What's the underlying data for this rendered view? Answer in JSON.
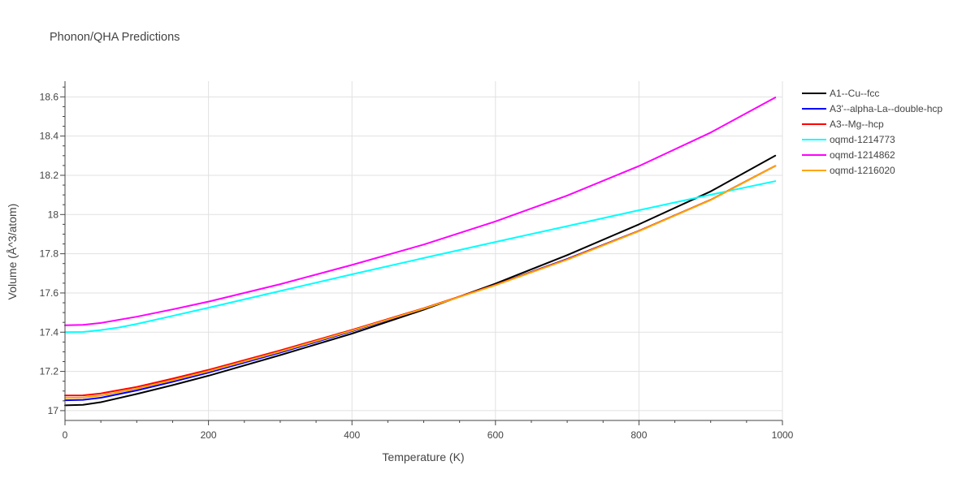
{
  "chart_data": {
    "type": "line",
    "title": "Phonon/QHA Predictions",
    "xlabel": "Temperature (K)",
    "ylabel": "Volume (Å^3/atom)",
    "xlim": [
      0,
      1000
    ],
    "ylim": [
      16.95,
      18.68
    ],
    "x_ticks": [
      0,
      200,
      400,
      600,
      800,
      1000
    ],
    "y_ticks": [
      17,
      17.2,
      17.4,
      17.6,
      17.8,
      18,
      18.2,
      18.4,
      18.6
    ],
    "x_tick_labels": [
      "0",
      "200",
      "400",
      "600",
      "800",
      "1000"
    ],
    "y_tick_labels": [
      "17",
      "17.2",
      "17.4",
      "17.6",
      "17.8",
      "18",
      "18.2",
      "18.4",
      "18.6"
    ],
    "grid": true,
    "legend_position": "top-right (outside plot)",
    "series": [
      {
        "name": "A1--Cu--fcc",
        "color": "#000000",
        "x": [
          0,
          25,
          50,
          100,
          150,
          200,
          300,
          400,
          500,
          600,
          700,
          800,
          900,
          990
        ],
        "y": [
          17.027,
          17.03,
          17.043,
          17.085,
          17.13,
          17.178,
          17.283,
          17.393,
          17.515,
          17.648,
          17.793,
          17.95,
          18.118,
          18.3
        ]
      },
      {
        "name": "A3'--alpha-La--double-hcp",
        "color": "#0000ff",
        "x": [
          0,
          25,
          50,
          100,
          150,
          200,
          300,
          400,
          500,
          600,
          700,
          800,
          900,
          990
        ],
        "y": [
          17.053,
          17.055,
          17.066,
          17.103,
          17.147,
          17.194,
          17.296,
          17.405,
          17.52,
          17.642,
          17.773,
          17.917,
          18.075,
          18.248
        ]
      },
      {
        "name": "A3--Mg--hcp",
        "color": "#ff0000",
        "x": [
          0,
          25,
          50,
          100,
          150,
          200,
          300,
          400,
          500,
          600,
          700,
          800,
          900,
          990
        ],
        "y": [
          17.077,
          17.078,
          17.088,
          17.121,
          17.163,
          17.208,
          17.307,
          17.412,
          17.522,
          17.641,
          17.771,
          17.916,
          18.075,
          18.248
        ]
      },
      {
        "name": "oqmd-1214773",
        "color": "#00ffff",
        "x": [
          0,
          25,
          50,
          75,
          100,
          150,
          200,
          300,
          400,
          500,
          600,
          700,
          800,
          900,
          990
        ],
        "y": [
          17.4,
          17.401,
          17.411,
          17.424,
          17.442,
          17.483,
          17.525,
          17.61,
          17.695,
          17.778,
          17.86,
          17.941,
          18.022,
          18.101,
          18.17
        ]
      },
      {
        "name": "oqmd-1214862",
        "color": "#ff00ff",
        "x": [
          0,
          25,
          50,
          100,
          150,
          200,
          300,
          400,
          500,
          600,
          700,
          800,
          900,
          990
        ],
        "y": [
          17.435,
          17.437,
          17.447,
          17.479,
          17.516,
          17.556,
          17.645,
          17.743,
          17.847,
          17.965,
          18.097,
          18.247,
          18.418,
          18.597
        ]
      },
      {
        "name": "oqmd-1216020",
        "color": "#ffa500",
        "x": [
          0,
          25,
          50,
          100,
          150,
          200,
          300,
          400,
          500,
          600,
          700,
          800,
          900,
          990
        ],
        "y": [
          17.065,
          17.067,
          17.077,
          17.112,
          17.155,
          17.201,
          17.301,
          17.408,
          17.52,
          17.64,
          17.77,
          17.915,
          18.074,
          18.248
        ]
      }
    ]
  }
}
